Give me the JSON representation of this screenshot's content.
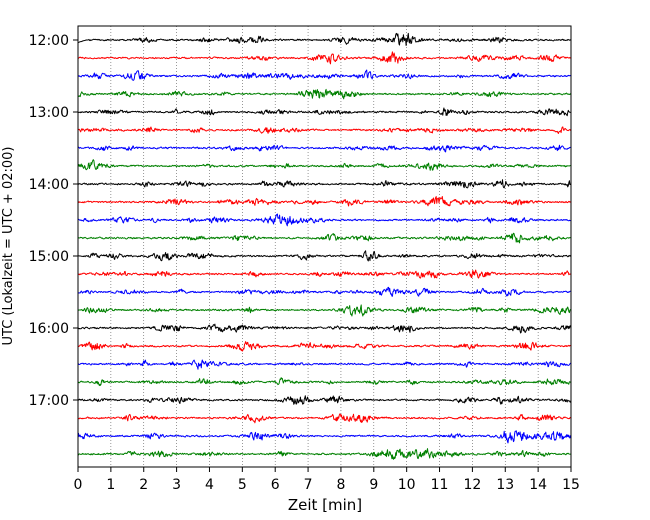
{
  "chart_data": {
    "type": "line",
    "title": "",
    "xlabel": "Zeit  [min]",
    "ylabel": "UTC (Lokalzeit = UTC + 02:00)",
    "xlim": [
      0,
      15
    ],
    "xticks": [
      "0",
      "1",
      "2",
      "3",
      "4",
      "5",
      "6",
      "7",
      "8",
      "9",
      "10",
      "11",
      "12",
      "13",
      "14",
      "15"
    ],
    "yticks": [
      "12:00",
      "13:00",
      "14:00",
      "15:00",
      "16:00",
      "17:00"
    ],
    "grid_x": true,
    "trace_colors": [
      "#000000",
      "#ff0000",
      "#0000ff",
      "#008000"
    ],
    "traces": [
      {
        "start": "12:00",
        "color": "#000000"
      },
      {
        "start": "12:15",
        "color": "#ff0000"
      },
      {
        "start": "12:30",
        "color": "#0000ff"
      },
      {
        "start": "12:45",
        "color": "#008000"
      },
      {
        "start": "13:00",
        "color": "#000000"
      },
      {
        "start": "13:15",
        "color": "#ff0000"
      },
      {
        "start": "13:30",
        "color": "#0000ff"
      },
      {
        "start": "13:45",
        "color": "#008000"
      },
      {
        "start": "14:00",
        "color": "#000000"
      },
      {
        "start": "14:15",
        "color": "#ff0000"
      },
      {
        "start": "14:30",
        "color": "#0000ff"
      },
      {
        "start": "14:45",
        "color": "#008000"
      },
      {
        "start": "15:00",
        "color": "#000000"
      },
      {
        "start": "15:15",
        "color": "#ff0000"
      },
      {
        "start": "15:30",
        "color": "#0000ff"
      },
      {
        "start": "15:45",
        "color": "#008000"
      },
      {
        "start": "16:00",
        "color": "#000000"
      },
      {
        "start": "16:15",
        "color": "#ff0000"
      },
      {
        "start": "16:30",
        "color": "#0000ff"
      },
      {
        "start": "16:45",
        "color": "#008000"
      },
      {
        "start": "17:00",
        "color": "#000000"
      },
      {
        "start": "17:15",
        "color": "#ff0000"
      },
      {
        "start": "17:30",
        "color": "#0000ff"
      },
      {
        "start": "17:45",
        "color": "#008000"
      }
    ]
  }
}
